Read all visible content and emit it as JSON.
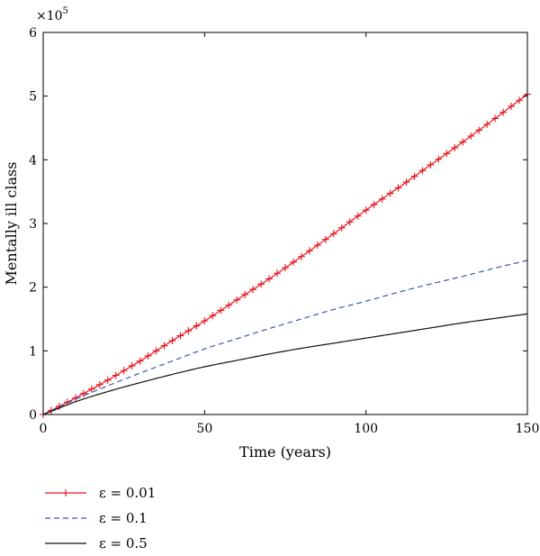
{
  "chart_data": {
    "type": "line",
    "title": "",
    "xlabel": "Time (years)",
    "ylabel": "Mentally ill class",
    "y_multiplier_label": "×10",
    "y_multiplier_exponent": "5",
    "xlim": [
      0,
      150
    ],
    "ylim": [
      0,
      6
    ],
    "x_ticks": [
      0,
      50,
      100,
      150
    ],
    "y_ticks": [
      0,
      1,
      2,
      3,
      4,
      5,
      6
    ],
    "grid": false,
    "legend_position": "below",
    "series": [
      {
        "name": "ε = 0.01",
        "color": "#e8141c",
        "style": "solid",
        "marker": "plus",
        "x": [
          0,
          10,
          20,
          30,
          40,
          50,
          60,
          70,
          80,
          90,
          100,
          110,
          120,
          130,
          140,
          150
        ],
        "y": [
          0,
          0.26,
          0.54,
          0.84,
          1.16,
          1.47,
          1.8,
          2.13,
          2.48,
          2.84,
          3.21,
          3.56,
          3.92,
          4.28,
          4.65,
          5.03
        ]
      },
      {
        "name": "ε = 0.1",
        "color": "#3b5ab0",
        "style": "dashed",
        "marker": "none",
        "x": [
          0,
          10,
          20,
          30,
          40,
          50,
          60,
          70,
          80,
          90,
          100,
          110,
          120,
          130,
          140,
          150
        ],
        "y": [
          0,
          0.24,
          0.45,
          0.65,
          0.84,
          1.03,
          1.19,
          1.35,
          1.5,
          1.65,
          1.78,
          1.92,
          2.05,
          2.17,
          2.3,
          2.42
        ]
      },
      {
        "name": "ε = 0.5",
        "color": "#111111",
        "style": "solid",
        "marker": "none",
        "x": [
          0,
          10,
          20,
          30,
          40,
          50,
          60,
          70,
          80,
          90,
          100,
          110,
          120,
          130,
          140,
          150
        ],
        "y": [
          0,
          0.2,
          0.36,
          0.5,
          0.63,
          0.75,
          0.85,
          0.95,
          1.04,
          1.12,
          1.2,
          1.28,
          1.36,
          1.44,
          1.51,
          1.58
        ]
      }
    ]
  }
}
